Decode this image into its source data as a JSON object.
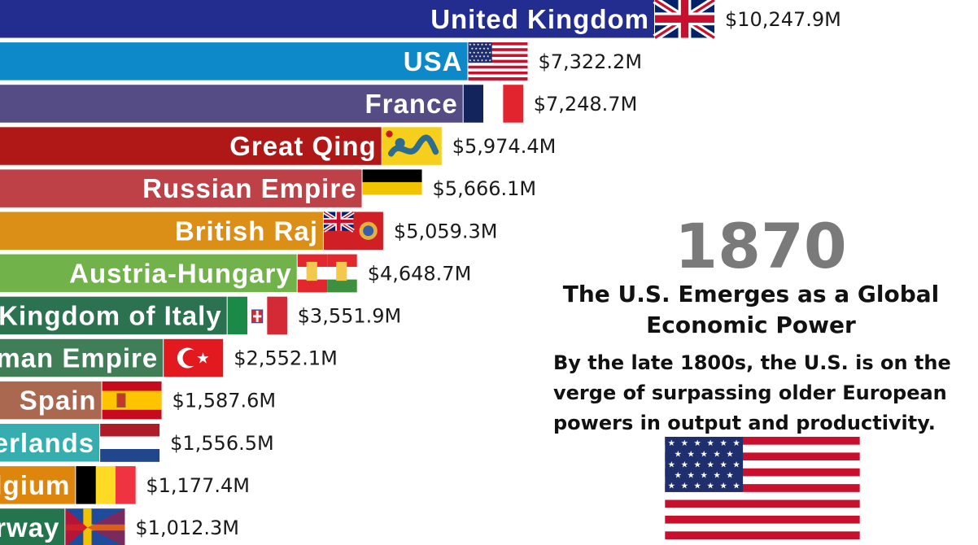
{
  "chart_data": {
    "type": "bar",
    "orientation": "horizontal",
    "title": "",
    "xlabel": "",
    "ylabel": "",
    "grid": false,
    "categories": [
      "United Kingdom",
      "USA",
      "France",
      "Great Qing",
      "Russian Empire",
      "British Raj",
      "Austria-Hungary",
      "Kingdom of Italy",
      "Ottoman Empire",
      "Spain",
      "Netherlands",
      "Belgium",
      "Sweden-Norway"
    ],
    "values": [
      10247.9,
      7322.2,
      7248.7,
      5974.4,
      5666.1,
      5059.3,
      4648.7,
      3551.9,
      2552.1,
      1587.6,
      1556.5,
      1177.4,
      1012.3
    ],
    "value_labels": [
      "$10,247.9M",
      "$7,322.2M",
      "$7,248.7M",
      "$5,974.4M",
      "$5,666.1M",
      "$5,059.3M",
      "$4,648.7M",
      "$3,551.9M",
      "$2,552.1M",
      "$1,587.6M",
      "$1,556.5M",
      "$1,177.4M",
      "$1,012.3M"
    ],
    "colors": [
      "#232c8f",
      "#0d88c9",
      "#554c86",
      "#b01818",
      "#bd4147",
      "#db8f16",
      "#71b34a",
      "#2b7350",
      "#3f7e57",
      "#aa6850",
      "#36aeb0",
      "#de860c",
      "#24754d"
    ],
    "flags": [
      "uk-flag-icon",
      "usa-flag-icon",
      "france-flag-icon",
      "qing-flag-icon",
      "russian-empire-flag-icon",
      "british-raj-flag-icon",
      "austria-hungary-flag-icon",
      "italy-flag-icon",
      "ottoman-flag-icon",
      "spain-flag-icon",
      "netherlands-flag-icon",
      "belgium-flag-icon",
      "sweden-norway-flag-icon"
    ]
  },
  "overlay": {
    "year": "1870",
    "headline": "The U.S. Emerges as a Global Economic Power",
    "description": "By the late 1800s, the U.S. is on the verge of surpassing older European powers in output and productivity.",
    "feature_flag": "usa-flag-icon"
  }
}
